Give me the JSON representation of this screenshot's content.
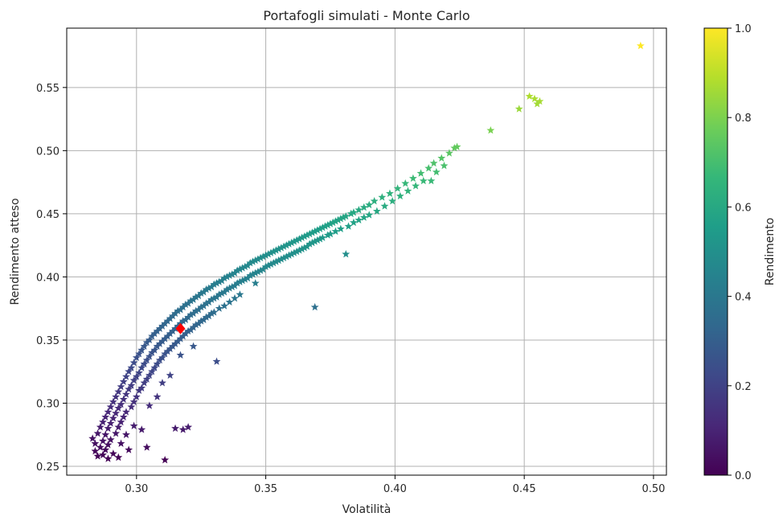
{
  "chart_data": {
    "type": "scatter",
    "title": "Portafogli simulati - Monte Carlo",
    "xlabel": "Volatilità",
    "ylabel": "Rendimento atteso",
    "xlim": [
      0.273,
      0.505
    ],
    "ylim": [
      0.243,
      0.597
    ],
    "xticks": [
      "0.30",
      "0.35",
      "0.40",
      "0.45",
      "0.50"
    ],
    "xtick_values": [
      0.3,
      0.35,
      0.4,
      0.45,
      0.5
    ],
    "yticks": [
      "0.25",
      "0.30",
      "0.35",
      "0.40",
      "0.45",
      "0.50",
      "0.55"
    ],
    "ytick_values": [
      0.25,
      0.3,
      0.35,
      0.4,
      0.45,
      0.5,
      0.55
    ],
    "grid": true,
    "marker": "star",
    "colormap": "viridis",
    "colorbar": {
      "label": "Rendimento",
      "range": [
        0.0,
        1.0
      ],
      "ticks": [
        "0.0",
        "0.2",
        "0.4",
        "0.6",
        "0.8",
        "1.0"
      ],
      "tick_values": [
        0.0,
        0.2,
        0.4,
        0.6,
        0.8,
        1.0
      ],
      "stops": [
        "#440154",
        "#482878",
        "#3e4989",
        "#31688e",
        "#26828e",
        "#1f9e89",
        "#35b779",
        "#6ece58",
        "#b5de2b",
        "#fde725"
      ]
    },
    "highlight": {
      "x": 0.317,
      "y": 0.359,
      "marker": "diamond",
      "color": "#ff0000"
    },
    "points": [
      [
        0.283,
        0.272
      ],
      [
        0.284,
        0.268
      ],
      [
        0.284,
        0.262
      ],
      [
        0.285,
        0.276
      ],
      [
        0.285,
        0.258
      ],
      [
        0.286,
        0.281
      ],
      [
        0.286,
        0.265
      ],
      [
        0.287,
        0.285
      ],
      [
        0.287,
        0.27
      ],
      [
        0.287,
        0.259
      ],
      [
        0.288,
        0.289
      ],
      [
        0.288,
        0.275
      ],
      [
        0.288,
        0.263
      ],
      [
        0.289,
        0.293
      ],
      [
        0.289,
        0.28
      ],
      [
        0.289,
        0.267
      ],
      [
        0.289,
        0.256
      ],
      [
        0.29,
        0.297
      ],
      [
        0.29,
        0.284
      ],
      [
        0.29,
        0.271
      ],
      [
        0.291,
        0.301
      ],
      [
        0.291,
        0.288
      ],
      [
        0.291,
        0.26
      ],
      [
        0.292,
        0.305
      ],
      [
        0.292,
        0.292
      ],
      [
        0.292,
        0.276
      ],
      [
        0.293,
        0.309
      ],
      [
        0.293,
        0.296
      ],
      [
        0.293,
        0.281
      ],
      [
        0.293,
        0.257
      ],
      [
        0.294,
        0.313
      ],
      [
        0.294,
        0.299
      ],
      [
        0.294,
        0.285
      ],
      [
        0.294,
        0.268
      ],
      [
        0.295,
        0.317
      ],
      [
        0.295,
        0.303
      ],
      [
        0.295,
        0.289
      ],
      [
        0.296,
        0.321
      ],
      [
        0.296,
        0.307
      ],
      [
        0.296,
        0.293
      ],
      [
        0.296,
        0.275
      ],
      [
        0.297,
        0.325
      ],
      [
        0.297,
        0.311
      ],
      [
        0.297,
        0.263
      ],
      [
        0.298,
        0.328
      ],
      [
        0.298,
        0.314
      ],
      [
        0.298,
        0.297
      ],
      [
        0.299,
        0.332
      ],
      [
        0.299,
        0.318
      ],
      [
        0.299,
        0.301
      ],
      [
        0.299,
        0.282
      ],
      [
        0.3,
        0.336
      ],
      [
        0.3,
        0.321
      ],
      [
        0.3,
        0.305
      ],
      [
        0.301,
        0.339
      ],
      [
        0.301,
        0.324
      ],
      [
        0.301,
        0.31
      ],
      [
        0.302,
        0.342
      ],
      [
        0.302,
        0.328
      ],
      [
        0.302,
        0.312
      ],
      [
        0.302,
        0.279
      ],
      [
        0.303,
        0.345
      ],
      [
        0.303,
        0.331
      ],
      [
        0.303,
        0.316
      ],
      [
        0.304,
        0.348
      ],
      [
        0.304,
        0.334
      ],
      [
        0.304,
        0.319
      ],
      [
        0.304,
        0.265
      ],
      [
        0.305,
        0.35
      ],
      [
        0.305,
        0.337
      ],
      [
        0.305,
        0.322
      ],
      [
        0.305,
        0.298
      ],
      [
        0.306,
        0.353
      ],
      [
        0.306,
        0.34
      ],
      [
        0.306,
        0.325
      ],
      [
        0.307,
        0.355
      ],
      [
        0.307,
        0.342
      ],
      [
        0.307,
        0.328
      ],
      [
        0.308,
        0.357
      ],
      [
        0.308,
        0.345
      ],
      [
        0.308,
        0.331
      ],
      [
        0.308,
        0.305
      ],
      [
        0.309,
        0.359
      ],
      [
        0.309,
        0.347
      ],
      [
        0.309,
        0.334
      ],
      [
        0.31,
        0.361
      ],
      [
        0.31,
        0.349
      ],
      [
        0.31,
        0.336
      ],
      [
        0.31,
        0.316
      ],
      [
        0.311,
        0.363
      ],
      [
        0.311,
        0.351
      ],
      [
        0.311,
        0.339
      ],
      [
        0.311,
        0.255
      ],
      [
        0.312,
        0.365
      ],
      [
        0.312,
        0.353
      ],
      [
        0.312,
        0.341
      ],
      [
        0.313,
        0.367
      ],
      [
        0.313,
        0.355
      ],
      [
        0.313,
        0.343
      ],
      [
        0.313,
        0.322
      ],
      [
        0.314,
        0.369
      ],
      [
        0.314,
        0.357
      ],
      [
        0.314,
        0.345
      ],
      [
        0.315,
        0.371
      ],
      [
        0.315,
        0.359
      ],
      [
        0.315,
        0.347
      ],
      [
        0.315,
        0.28
      ],
      [
        0.316,
        0.373
      ],
      [
        0.316,
        0.361
      ],
      [
        0.316,
        0.349
      ],
      [
        0.317,
        0.374
      ],
      [
        0.317,
        0.363
      ],
      [
        0.317,
        0.351
      ],
      [
        0.317,
        0.338
      ],
      [
        0.318,
        0.376
      ],
      [
        0.318,
        0.365
      ],
      [
        0.318,
        0.353
      ],
      [
        0.318,
        0.279
      ],
      [
        0.319,
        0.378
      ],
      [
        0.319,
        0.366
      ],
      [
        0.319,
        0.355
      ],
      [
        0.32,
        0.379
      ],
      [
        0.32,
        0.368
      ],
      [
        0.32,
        0.357
      ],
      [
        0.32,
        0.281
      ],
      [
        0.321,
        0.381
      ],
      [
        0.321,
        0.37
      ],
      [
        0.321,
        0.358
      ],
      [
        0.322,
        0.382
      ],
      [
        0.322,
        0.371
      ],
      [
        0.322,
        0.36
      ],
      [
        0.322,
        0.345
      ],
      [
        0.323,
        0.384
      ],
      [
        0.323,
        0.373
      ],
      [
        0.323,
        0.362
      ],
      [
        0.324,
        0.385
      ],
      [
        0.324,
        0.374
      ],
      [
        0.324,
        0.363
      ],
      [
        0.325,
        0.387
      ],
      [
        0.325,
        0.376
      ],
      [
        0.325,
        0.365
      ],
      [
        0.326,
        0.388
      ],
      [
        0.326,
        0.377
      ],
      [
        0.326,
        0.366
      ],
      [
        0.327,
        0.39
      ],
      [
        0.327,
        0.379
      ],
      [
        0.327,
        0.368
      ],
      [
        0.328,
        0.391
      ],
      [
        0.328,
        0.38
      ],
      [
        0.328,
        0.369
      ],
      [
        0.329,
        0.392
      ],
      [
        0.329,
        0.382
      ],
      [
        0.329,
        0.371
      ],
      [
        0.33,
        0.394
      ],
      [
        0.33,
        0.383
      ],
      [
        0.33,
        0.372
      ],
      [
        0.331,
        0.333
      ],
      [
        0.331,
        0.395
      ],
      [
        0.331,
        0.384
      ],
      [
        0.332,
        0.396
      ],
      [
        0.332,
        0.386
      ],
      [
        0.332,
        0.375
      ],
      [
        0.333,
        0.397
      ],
      [
        0.333,
        0.387
      ],
      [
        0.334,
        0.399
      ],
      [
        0.334,
        0.388
      ],
      [
        0.334,
        0.377
      ],
      [
        0.335,
        0.4
      ],
      [
        0.335,
        0.39
      ],
      [
        0.336,
        0.401
      ],
      [
        0.336,
        0.391
      ],
      [
        0.336,
        0.38
      ],
      [
        0.337,
        0.402
      ],
      [
        0.337,
        0.392
      ],
      [
        0.338,
        0.403
      ],
      [
        0.338,
        0.393
      ],
      [
        0.338,
        0.383
      ],
      [
        0.339,
        0.405
      ],
      [
        0.339,
        0.395
      ],
      [
        0.34,
        0.406
      ],
      [
        0.34,
        0.396
      ],
      [
        0.34,
        0.386
      ],
      [
        0.341,
        0.407
      ],
      [
        0.341,
        0.397
      ],
      [
        0.342,
        0.408
      ],
      [
        0.342,
        0.398
      ],
      [
        0.343,
        0.409
      ],
      [
        0.343,
        0.399
      ],
      [
        0.344,
        0.411
      ],
      [
        0.344,
        0.401
      ],
      [
        0.345,
        0.412
      ],
      [
        0.345,
        0.402
      ],
      [
        0.346,
        0.413
      ],
      [
        0.346,
        0.403
      ],
      [
        0.346,
        0.395
      ],
      [
        0.347,
        0.414
      ],
      [
        0.347,
        0.404
      ],
      [
        0.348,
        0.415
      ],
      [
        0.348,
        0.405
      ],
      [
        0.349,
        0.416
      ],
      [
        0.349,
        0.406
      ],
      [
        0.35,
        0.417
      ],
      [
        0.35,
        0.408
      ],
      [
        0.351,
        0.418
      ],
      [
        0.351,
        0.409
      ],
      [
        0.352,
        0.419
      ],
      [
        0.352,
        0.41
      ],
      [
        0.353,
        0.42
      ],
      [
        0.353,
        0.411
      ],
      [
        0.354,
        0.421
      ],
      [
        0.354,
        0.412
      ],
      [
        0.355,
        0.422
      ],
      [
        0.355,
        0.413
      ],
      [
        0.356,
        0.423
      ],
      [
        0.356,
        0.414
      ],
      [
        0.357,
        0.424
      ],
      [
        0.357,
        0.415
      ],
      [
        0.358,
        0.425
      ],
      [
        0.358,
        0.416
      ],
      [
        0.359,
        0.426
      ],
      [
        0.359,
        0.417
      ],
      [
        0.36,
        0.427
      ],
      [
        0.36,
        0.418
      ],
      [
        0.361,
        0.428
      ],
      [
        0.361,
        0.419
      ],
      [
        0.362,
        0.429
      ],
      [
        0.362,
        0.42
      ],
      [
        0.363,
        0.43
      ],
      [
        0.363,
        0.421
      ],
      [
        0.364,
        0.431
      ],
      [
        0.364,
        0.422
      ],
      [
        0.365,
        0.432
      ],
      [
        0.365,
        0.423
      ],
      [
        0.366,
        0.433
      ],
      [
        0.366,
        0.424
      ],
      [
        0.367,
        0.434
      ],
      [
        0.367,
        0.426
      ],
      [
        0.368,
        0.435
      ],
      [
        0.368,
        0.427
      ],
      [
        0.369,
        0.376
      ],
      [
        0.369,
        0.436
      ],
      [
        0.369,
        0.428
      ],
      [
        0.37,
        0.437
      ],
      [
        0.37,
        0.429
      ],
      [
        0.371,
        0.438
      ],
      [
        0.371,
        0.43
      ],
      [
        0.372,
        0.439
      ],
      [
        0.372,
        0.431
      ],
      [
        0.373,
        0.44
      ],
      [
        0.374,
        0.441
      ],
      [
        0.374,
        0.433
      ],
      [
        0.375,
        0.442
      ],
      [
        0.375,
        0.434
      ],
      [
        0.376,
        0.443
      ],
      [
        0.377,
        0.444
      ],
      [
        0.377,
        0.436
      ],
      [
        0.378,
        0.445
      ],
      [
        0.379,
        0.446
      ],
      [
        0.379,
        0.438
      ],
      [
        0.38,
        0.447
      ],
      [
        0.381,
        0.418
      ],
      [
        0.381,
        0.448
      ],
      [
        0.382,
        0.44
      ],
      [
        0.383,
        0.45
      ],
      [
        0.384,
        0.451
      ],
      [
        0.384,
        0.443
      ],
      [
        0.386,
        0.453
      ],
      [
        0.386,
        0.445
      ],
      [
        0.388,
        0.455
      ],
      [
        0.388,
        0.447
      ],
      [
        0.39,
        0.457
      ],
      [
        0.39,
        0.449
      ],
      [
        0.392,
        0.46
      ],
      [
        0.393,
        0.452
      ],
      [
        0.395,
        0.463
      ],
      [
        0.396,
        0.456
      ],
      [
        0.398,
        0.466
      ],
      [
        0.399,
        0.46
      ],
      [
        0.401,
        0.47
      ],
      [
        0.402,
        0.464
      ],
      [
        0.404,
        0.474
      ],
      [
        0.405,
        0.468
      ],
      [
        0.407,
        0.478
      ],
      [
        0.408,
        0.472
      ],
      [
        0.41,
        0.482
      ],
      [
        0.411,
        0.476
      ],
      [
        0.413,
        0.486
      ],
      [
        0.414,
        0.476
      ],
      [
        0.415,
        0.49
      ],
      [
        0.416,
        0.483
      ],
      [
        0.418,
        0.494
      ],
      [
        0.419,
        0.488
      ],
      [
        0.421,
        0.498
      ],
      [
        0.423,
        0.502
      ],
      [
        0.424,
        0.503
      ],
      [
        0.437,
        0.516
      ],
      [
        0.448,
        0.533
      ],
      [
        0.452,
        0.543
      ],
      [
        0.454,
        0.541
      ],
      [
        0.455,
        0.537
      ],
      [
        0.456,
        0.539
      ],
      [
        0.495,
        0.583
      ]
    ]
  }
}
